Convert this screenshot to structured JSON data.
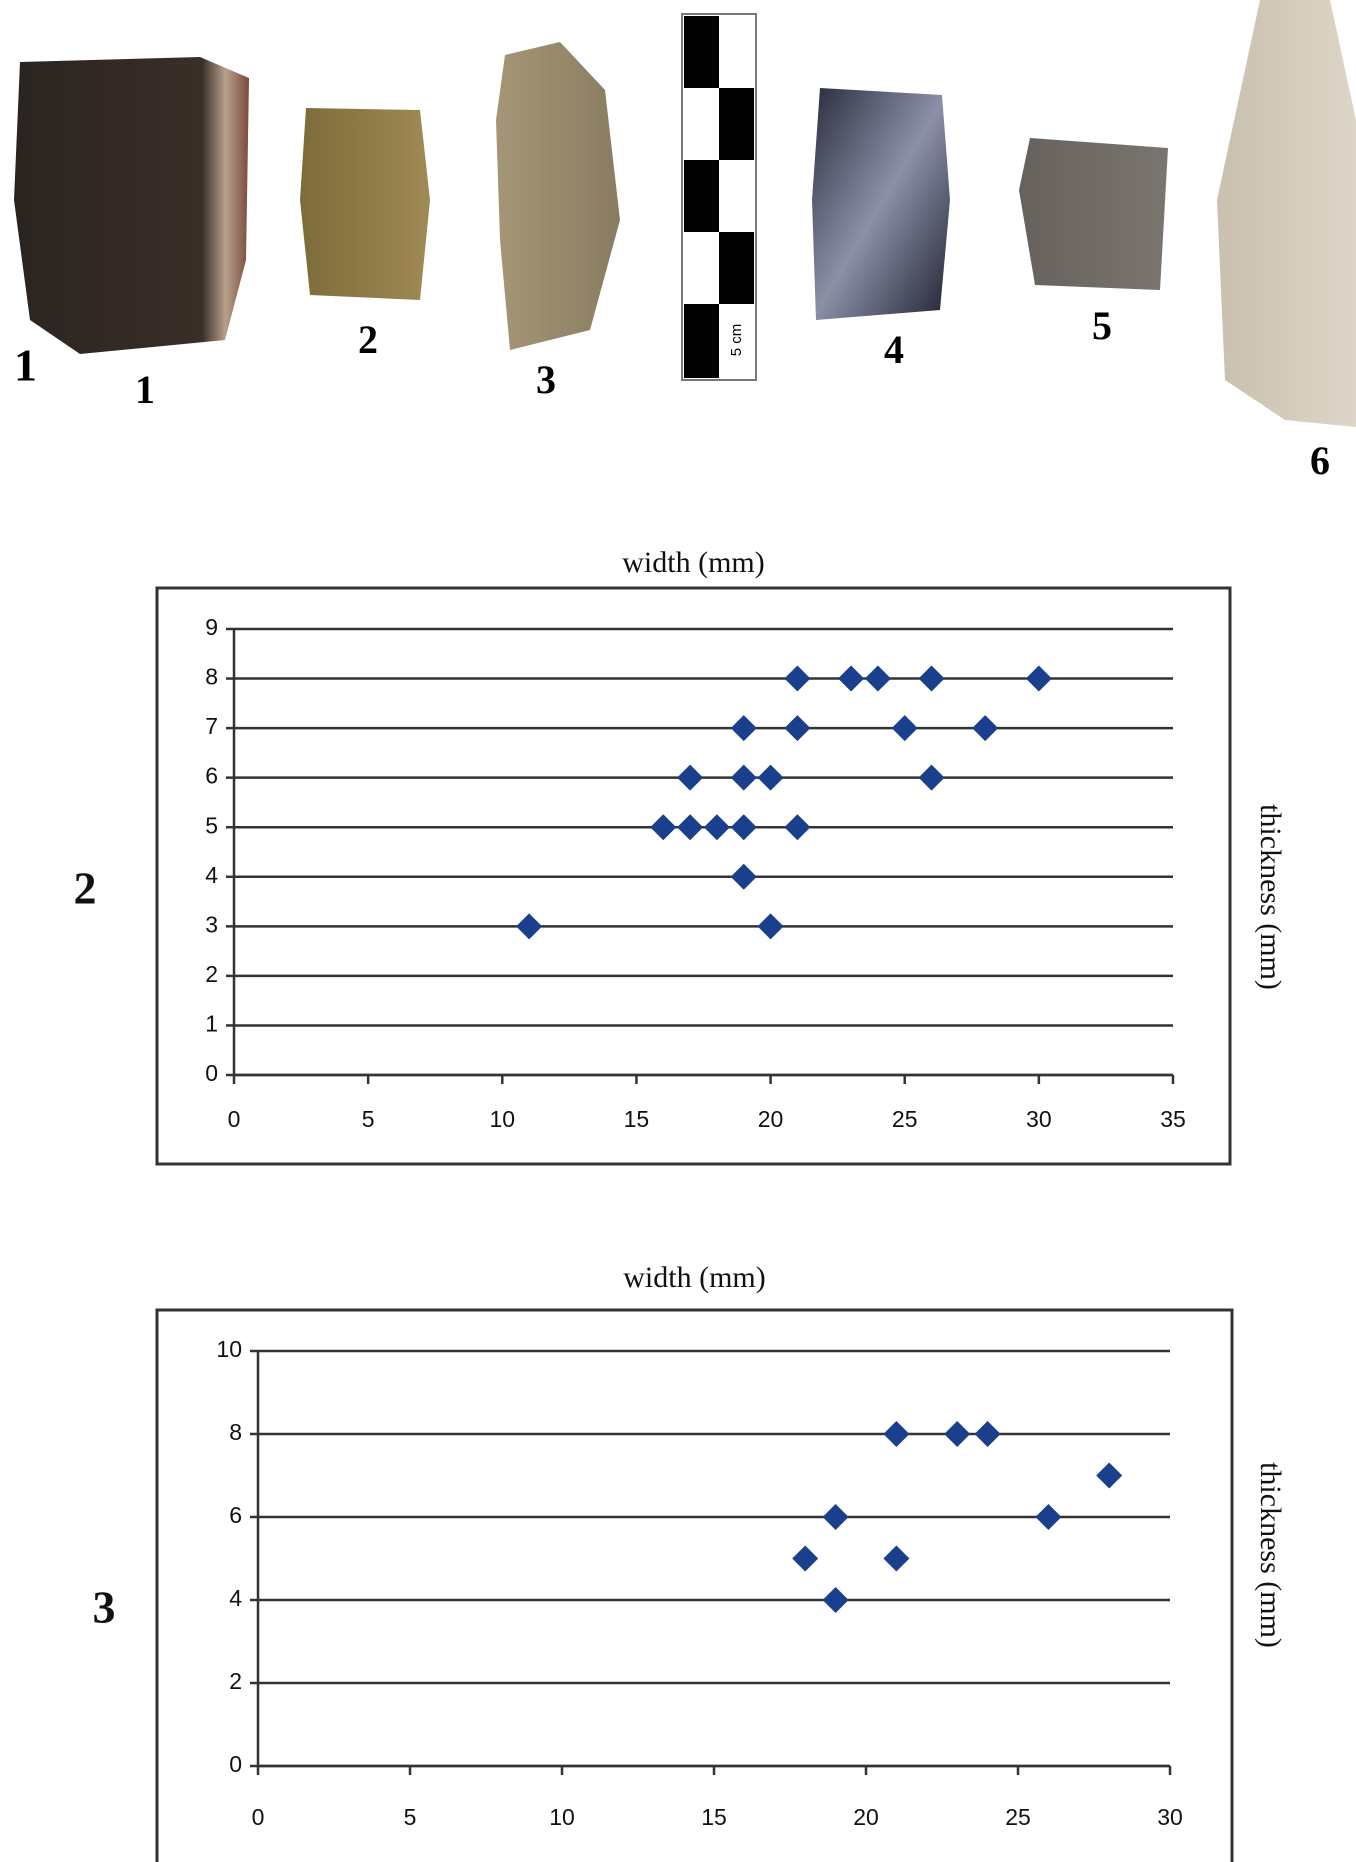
{
  "figure": {
    "photo_labels": [
      "1",
      "1",
      "2",
      "3",
      "4",
      "5",
      "6"
    ],
    "scale_label": "5 cm"
  },
  "chart_data": [
    {
      "type": "scatter",
      "title": "width (mm)",
      "y_label": "thickness (mm)",
      "panel_label": "2",
      "xlim": [
        0,
        35
      ],
      "xticks": [
        0,
        5,
        10,
        15,
        20,
        25,
        30,
        35
      ],
      "ylim": [
        0,
        9
      ],
      "yticks": [
        0,
        1,
        2,
        3,
        4,
        5,
        6,
        7,
        8,
        9
      ],
      "grid": true,
      "series": [
        {
          "color": "#1a3f8c",
          "x": [
            21,
            23,
            24,
            26,
            30,
            19,
            21,
            25,
            28,
            17,
            19,
            20,
            26,
            16,
            17,
            18,
            19,
            21,
            19,
            11,
            20
          ],
          "values": [
            8,
            8,
            8,
            8,
            8,
            7,
            7,
            7,
            7,
            6,
            6,
            6,
            6,
            5,
            5,
            5,
            5,
            5,
            4,
            3,
            3
          ]
        }
      ]
    },
    {
      "type": "scatter",
      "title": "width (mm)",
      "y_label": "thickness (mm)",
      "panel_label": "3",
      "xlim": [
        0,
        30
      ],
      "xticks": [
        0,
        5,
        10,
        15,
        20,
        25,
        30
      ],
      "ylim": [
        0,
        10
      ],
      "yticks": [
        0,
        2,
        4,
        6,
        8,
        10
      ],
      "grid": true,
      "series": [
        {
          "color": "#1a3f8c",
          "x": [
            21,
            23,
            24,
            28,
            19,
            26,
            18,
            21,
            19
          ],
          "values": [
            8,
            8,
            8,
            7,
            6,
            6,
            5,
            5,
            4
          ]
        }
      ]
    }
  ]
}
